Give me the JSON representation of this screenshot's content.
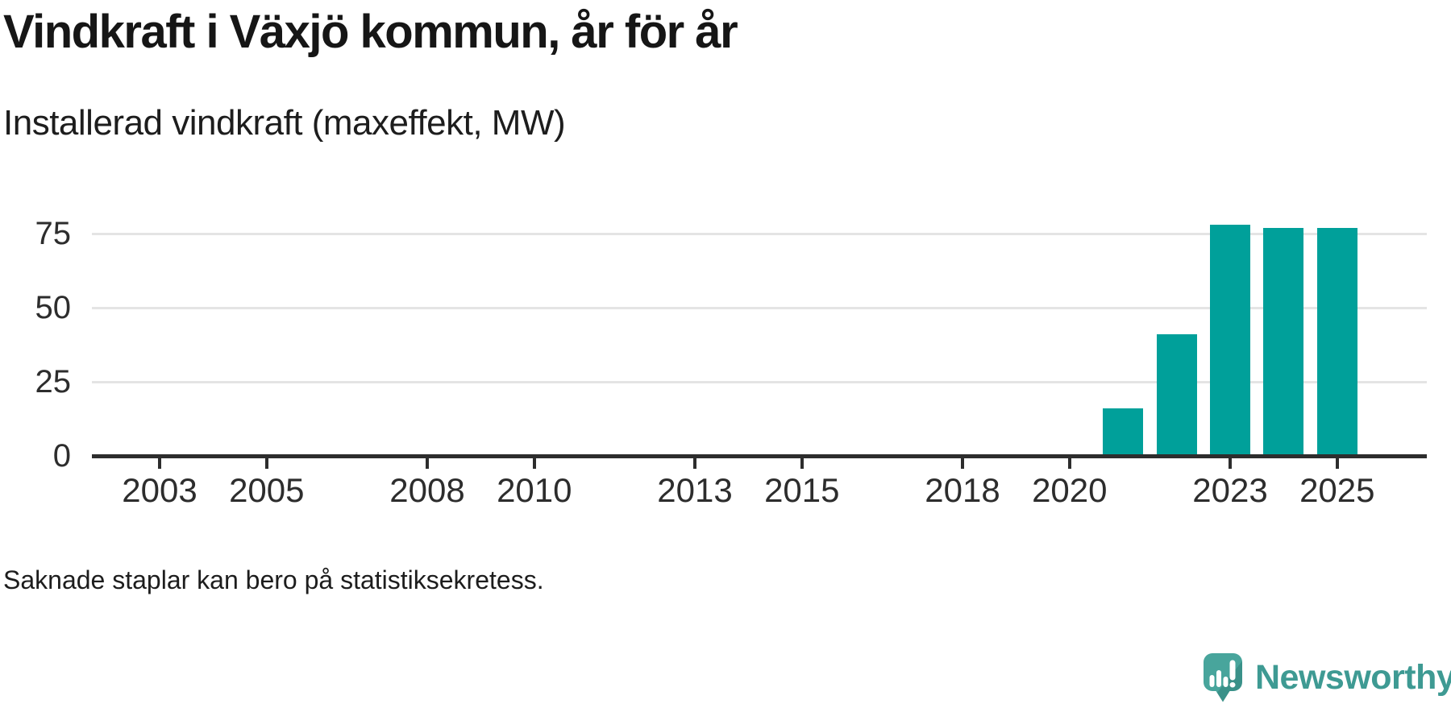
{
  "header": {
    "title": "Vindkraft i Växjö kommun, år för år",
    "subtitle": "Installerad vindkraft (maxeffekt, MW)"
  },
  "chart_data": {
    "type": "bar",
    "title": "Vindkraft i Växjö kommun, år för år",
    "subtitle": "Installerad vindkraft (maxeffekt, MW)",
    "unit": "MW",
    "categories": [
      2021,
      2022,
      2023,
      2024,
      2025
    ],
    "values": [
      16,
      41,
      78,
      77,
      77
    ],
    "bar_color": "#00a09a",
    "x_axis": {
      "tick_years": [
        2003,
        2005,
        2008,
        2010,
        2013,
        2015,
        2018,
        2020,
        2023,
        2025
      ],
      "range": [
        2001.3,
        2026.6
      ]
    },
    "y_axis": {
      "ticks": [
        0,
        25,
        50,
        75
      ],
      "range": [
        0,
        80
      ]
    },
    "grid": "horizontal-only",
    "legend": "none",
    "note": "Missing bars for years 2002-2020: no bars rendered (se footnote)"
  },
  "footnote": {
    "text": "Saknade staplar kan bero på statistiksekretess."
  },
  "branding": {
    "name": "Newsworthy",
    "text_color": "#3e9a93",
    "icon_color": "#48a59c",
    "icon_color_dark": "#3a9189",
    "icon": "newsworthy-speech-bubble-bar-chart-icon"
  }
}
